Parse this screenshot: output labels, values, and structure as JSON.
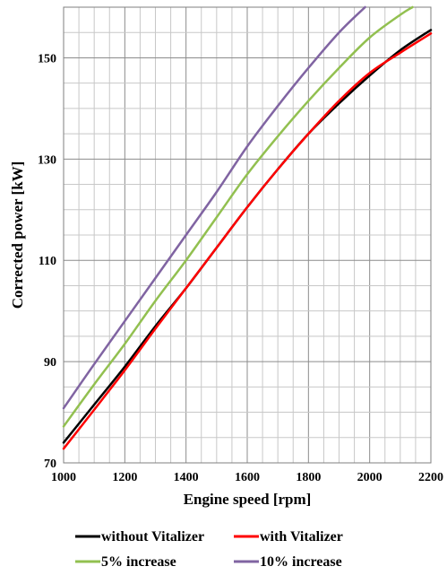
{
  "chart_data": {
    "type": "line",
    "title": "",
    "xlabel": "Engine speed [rpm]",
    "ylabel": "Corrected power [kW]",
    "xlim": [
      1000,
      2200
    ],
    "ylim": [
      70,
      160
    ],
    "x_ticks": [
      1000,
      1200,
      1400,
      1600,
      1800,
      2000,
      2200
    ],
    "y_ticks": [
      70,
      90,
      110,
      130,
      150
    ],
    "x_minor_step": 50,
    "y_minor_step": 5,
    "grid": true,
    "legend_position": "bottom",
    "series": [
      {
        "name": "without Vitalizer",
        "color": "#000000",
        "x": [
          1000,
          1100,
          1200,
          1300,
          1400,
          1500,
          1600,
          1700,
          1800,
          1900,
          2000,
          2100,
          2200
        ],
        "y": [
          74,
          81.5,
          89,
          97,
          104.5,
          112.5,
          120.5,
          128,
          135,
          141,
          146.5,
          151.5,
          155.5
        ]
      },
      {
        "name": "with Vitalizer",
        "color": "#ff0000",
        "x": [
          1000,
          1100,
          1200,
          1300,
          1400,
          1500,
          1600,
          1700,
          1800,
          1900,
          2000,
          2100,
          2200
        ],
        "y": [
          72.8,
          80.5,
          88.3,
          96.5,
          104.5,
          112.5,
          120.5,
          128,
          135,
          141.5,
          147,
          151,
          154.8
        ]
      },
      {
        "name": "5% increase",
        "color": "#92c050",
        "x": [
          1000,
          1100,
          1200,
          1300,
          1400,
          1500,
          1600,
          1700,
          1800,
          1900,
          2000,
          2100,
          2140
        ],
        "y": [
          77.2,
          85.5,
          93.5,
          102,
          110,
          118.5,
          127,
          134.5,
          141.5,
          148,
          154,
          158.5,
          160
        ]
      },
      {
        "name": "10% increase",
        "color": "#8064a2",
        "x": [
          1000,
          1100,
          1200,
          1300,
          1400,
          1500,
          1600,
          1700,
          1800,
          1900,
          1985
        ],
        "y": [
          80.8,
          89.5,
          98,
          106.5,
          115,
          123.5,
          132.5,
          140.5,
          148,
          155,
          160
        ]
      }
    ]
  }
}
